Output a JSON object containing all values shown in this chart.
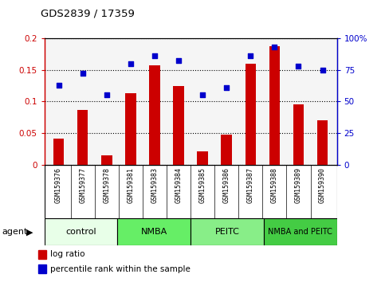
{
  "title": "GDS2839 / 17359",
  "samples": [
    "GSM159376",
    "GSM159377",
    "GSM159378",
    "GSM159381",
    "GSM159383",
    "GSM159384",
    "GSM159385",
    "GSM159386",
    "GSM159387",
    "GSM159388",
    "GSM159389",
    "GSM159390"
  ],
  "log_ratio": [
    0.042,
    0.087,
    0.015,
    0.113,
    0.157,
    0.125,
    0.022,
    0.048,
    0.16,
    0.187,
    0.095,
    0.07
  ],
  "percentile_rank": [
    63,
    72,
    55,
    80,
    86,
    82,
    55,
    61,
    86,
    93,
    78,
    75
  ],
  "bar_color": "#cc0000",
  "dot_color": "#0000cc",
  "groups": [
    {
      "label": "control",
      "start": 0,
      "end": 3,
      "color": "#e8ffe8"
    },
    {
      "label": "NMBA",
      "start": 3,
      "end": 6,
      "color": "#66ee66"
    },
    {
      "label": "PEITC",
      "start": 6,
      "end": 9,
      "color": "#88ee88"
    },
    {
      "label": "NMBA and PEITC",
      "start": 9,
      "end": 12,
      "color": "#44cc44"
    }
  ],
  "ylim_left": [
    0,
    0.2
  ],
  "ylim_right": [
    0,
    100
  ],
  "yticks_left": [
    0,
    0.05,
    0.1,
    0.15,
    0.2
  ],
  "yticks_right": [
    0,
    25,
    50,
    75,
    100
  ],
  "ytick_labels_left": [
    "0",
    "0.05",
    "0.1",
    "0.15",
    "0.2"
  ],
  "ytick_labels_right": [
    "0",
    "25",
    "50",
    "75",
    "100%"
  ],
  "left_color": "#cc0000",
  "right_color": "#0000cc",
  "plot_bg": "#f5f5f5",
  "grid_color": "#000000",
  "sample_label_bg": "#c8c8c8",
  "agent_label": "agent",
  "legend_items": [
    {
      "color": "#cc0000",
      "label": "log ratio"
    },
    {
      "color": "#0000cc",
      "label": "percentile rank within the sample"
    }
  ]
}
